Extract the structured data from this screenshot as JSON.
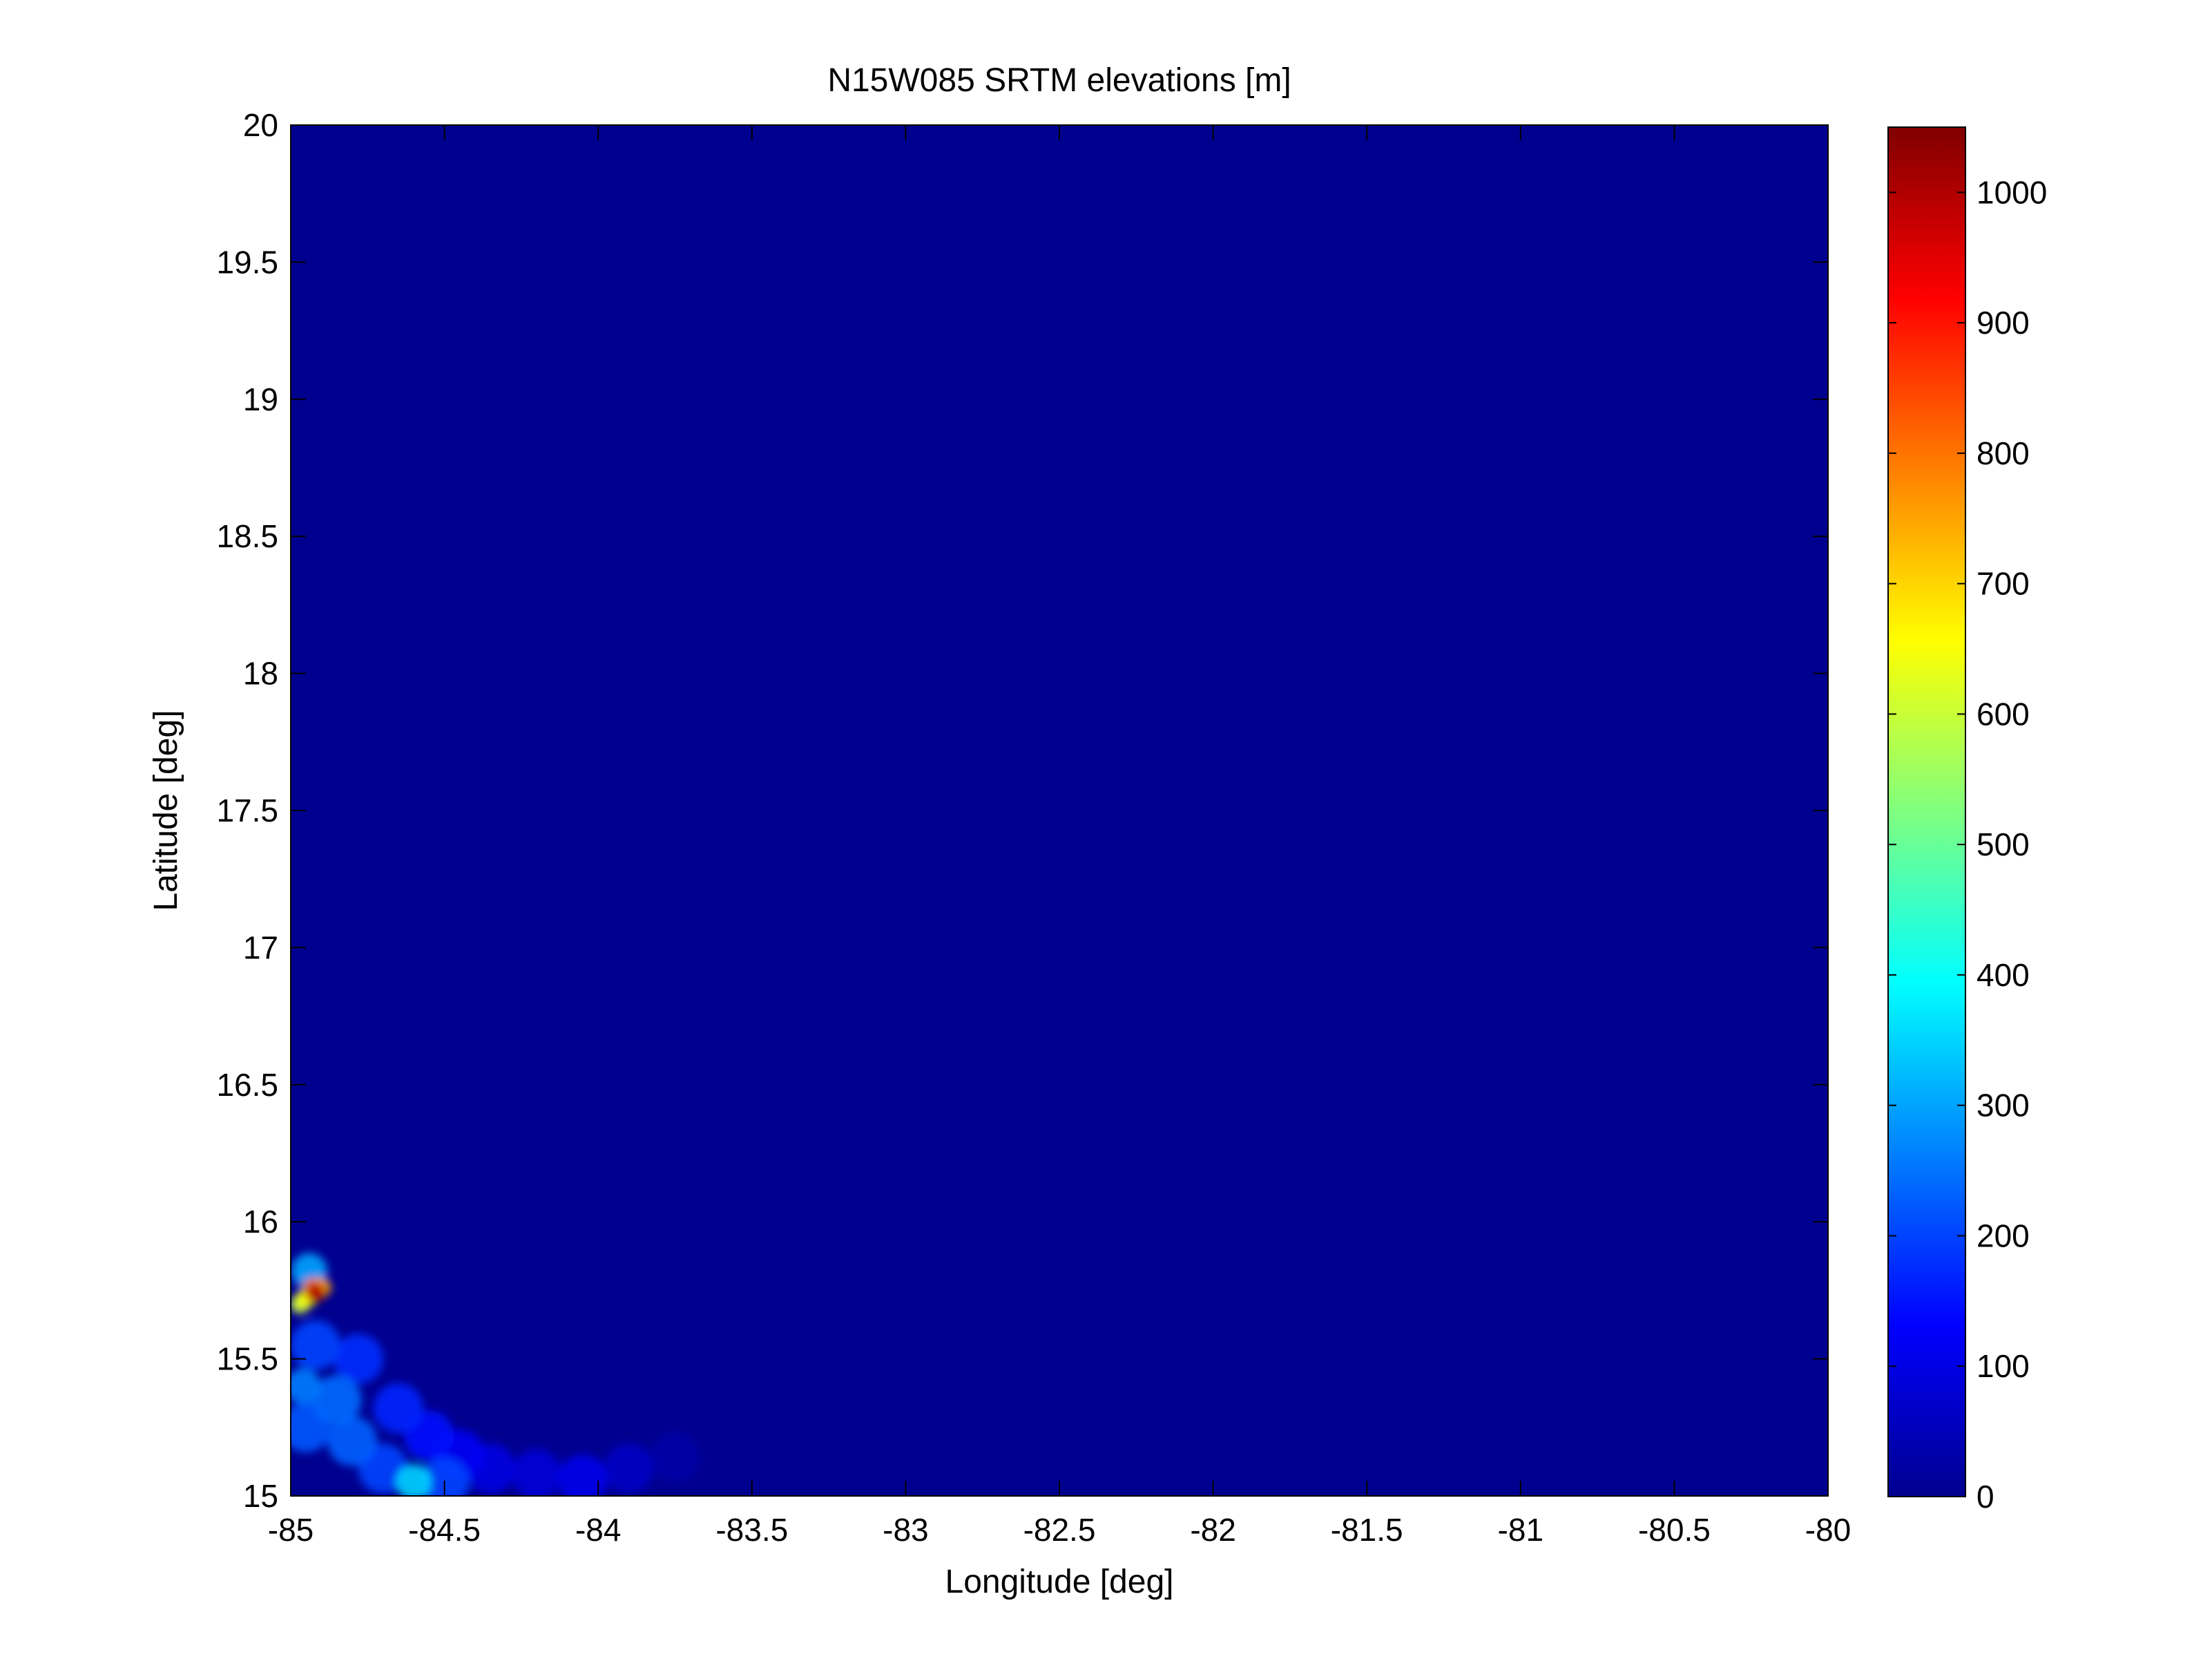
{
  "chart_data": {
    "type": "heatmap",
    "title": "N15W085 SRTM elevations [m]",
    "xlabel": "Longitude [deg]",
    "ylabel": "Latitude [deg]",
    "xlim": [
      -85,
      -80
    ],
    "ylim": [
      15,
      20
    ],
    "x_ticks": [
      -85,
      -84.5,
      -84,
      -83.5,
      -83,
      -82.5,
      -82,
      -81.5,
      -81,
      -80.5,
      -80
    ],
    "x_tick_labels": [
      "-85",
      "-84.5",
      "-84",
      "-83.5",
      "-83",
      "-82.5",
      "-82",
      "-81.5",
      "-81",
      "-80.5",
      "-80"
    ],
    "y_ticks": [
      15,
      15.5,
      16,
      16.5,
      17,
      17.5,
      18,
      18.5,
      19,
      19.5,
      20
    ],
    "y_tick_labels": [
      "15",
      "15.5",
      "16",
      "16.5",
      "17",
      "17.5",
      "18",
      "18.5",
      "19",
      "19.5",
      "20"
    ],
    "colormap": "jet",
    "clim": [
      0,
      1050
    ],
    "colorbar_ticks": [
      0,
      100,
      200,
      300,
      400,
      500,
      600,
      700,
      800,
      900,
      1000
    ],
    "colorbar_tick_labels": [
      "0",
      "100",
      "200",
      "300",
      "400",
      "500",
      "600",
      "700",
      "800",
      "900",
      "1000"
    ],
    "background_value": 0,
    "features": [
      {
        "lon": -84.96,
        "lat": 15.4,
        "value": 260
      },
      {
        "lon": -84.95,
        "lat": 15.25,
        "value": 220
      },
      {
        "lon": -84.92,
        "lat": 15.55,
        "value": 200
      },
      {
        "lon": -84.85,
        "lat": 15.35,
        "value": 240
      },
      {
        "lon": -84.8,
        "lat": 15.2,
        "value": 230
      },
      {
        "lon": -84.78,
        "lat": 15.5,
        "value": 180
      },
      {
        "lon": -84.7,
        "lat": 15.1,
        "value": 200
      },
      {
        "lon": -84.65,
        "lat": 15.32,
        "value": 170
      },
      {
        "lon": -84.6,
        "lat": 15.05,
        "value": 350
      },
      {
        "lon": -84.55,
        "lat": 15.22,
        "value": 150
      },
      {
        "lon": -84.5,
        "lat": 15.05,
        "value": 200
      },
      {
        "lon": -84.45,
        "lat": 15.15,
        "value": 120
      },
      {
        "lon": -84.35,
        "lat": 15.1,
        "value": 100
      },
      {
        "lon": -84.2,
        "lat": 15.08,
        "value": 90
      },
      {
        "lon": -84.05,
        "lat": 15.06,
        "value": 110
      },
      {
        "lon": -83.9,
        "lat": 15.1,
        "value": 70
      },
      {
        "lon": -83.75,
        "lat": 15.14,
        "value": 40
      },
      {
        "lon": -84.97,
        "lat": 15.7,
        "value": 600
      },
      {
        "lon": -84.95,
        "lat": 15.72,
        "value": 650
      },
      {
        "lon": -84.93,
        "lat": 15.76,
        "value": 800
      },
      {
        "lon": -84.92,
        "lat": 15.74,
        "value": 1000
      },
      {
        "lon": -84.9,
        "lat": 15.76,
        "value": 750
      },
      {
        "lon": -84.94,
        "lat": 15.82,
        "value": 300
      }
    ]
  }
}
